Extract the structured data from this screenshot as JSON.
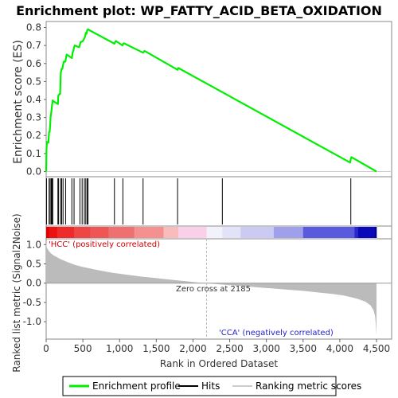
{
  "title": "Enrichment plot: WP_FATTY_ACID_BETA_OXIDATION",
  "colors": {
    "enrichment": "#00ee00",
    "hits": "#000000",
    "metric_fill": "#bbbbbb",
    "pos_label": "#cc0000",
    "neg_label": "#2222cc",
    "zero_cross_line": "#bbbbbb"
  },
  "chart_data": [
    {
      "type": "line",
      "name": "enrichment-profile",
      "ylabel": "Enrichment score (ES)",
      "ylim": [
        -0.02,
        0.82
      ],
      "yticks": [
        0.0,
        0.1,
        0.2,
        0.3,
        0.4,
        0.5,
        0.6,
        0.7,
        0.8
      ],
      "ytick_labels": [
        "0.0",
        "0.1",
        "0.2",
        "0.3",
        "0.4",
        "0.5",
        "0.6",
        "0.7",
        "0.8"
      ],
      "series": [
        {
          "name": "Enrichment profile",
          "x": [
            0,
            4,
            10,
            18,
            20,
            30,
            38,
            40,
            48,
            55,
            60,
            70,
            80,
            90,
            100,
            160,
            165,
            180,
            190,
            200,
            210,
            220,
            240,
            260,
            280,
            350,
            360,
            370,
            380,
            390,
            420,
            450,
            470,
            480,
            500,
            520,
            530,
            540,
            550,
            560,
            570,
            580,
            930,
            940,
            950,
            1040,
            1050,
            1060,
            1320,
            1330,
            1340,
            1790,
            1800,
            4140,
            4150,
            4160,
            4500
          ],
          "y": [
            0.0,
            0.12,
            0.165,
            0.16,
            0.16,
            0.16,
            0.21,
            0.22,
            0.22,
            0.26,
            0.3,
            0.33,
            0.37,
            0.395,
            0.39,
            0.375,
            0.42,
            0.43,
            0.43,
            0.55,
            0.57,
            0.57,
            0.61,
            0.61,
            0.65,
            0.63,
            0.66,
            0.67,
            0.69,
            0.7,
            0.695,
            0.69,
            0.72,
            0.72,
            0.725,
            0.74,
            0.75,
            0.77,
            0.765,
            0.785,
            0.79,
            0.787,
            0.71,
            0.72,
            0.725,
            0.7,
            0.71,
            0.712,
            0.66,
            0.665,
            0.67,
            0.565,
            0.575,
            0.05,
            0.07,
            0.08,
            0.0
          ]
        }
      ]
    },
    {
      "type": "scatter",
      "name": "hits",
      "series": [
        {
          "name": "Hits",
          "x": [
            5,
            40,
            55,
            70,
            80,
            90,
            160,
            170,
            200,
            210,
            230,
            265,
            350,
            380,
            460,
            490,
            520,
            540,
            560,
            570,
            930,
            1045,
            1320,
            1790,
            2400,
            4150
          ]
        }
      ]
    },
    {
      "type": "heatmap",
      "name": "rank-colorbar",
      "segments": [
        {
          "x0": 0,
          "x1": 40,
          "color": "#dd0000"
        },
        {
          "x0": 40,
          "x1": 150,
          "color": "#ee1111"
        },
        {
          "x0": 150,
          "x1": 380,
          "color": "#ee2a2a"
        },
        {
          "x0": 380,
          "x1": 600,
          "color": "#ee4545"
        },
        {
          "x0": 600,
          "x1": 850,
          "color": "#ee5555"
        },
        {
          "x0": 850,
          "x1": 1200,
          "color": "#ee7070"
        },
        {
          "x0": 1200,
          "x1": 1600,
          "color": "#f59090"
        },
        {
          "x0": 1600,
          "x1": 1800,
          "color": "#f8bcbc"
        },
        {
          "x0": 1800,
          "x1": 2185,
          "color": "#f9d0e8"
        },
        {
          "x0": 2185,
          "x1": 2400,
          "color": "#f2f2fb"
        },
        {
          "x0": 2400,
          "x1": 2650,
          "color": "#e2e2f8"
        },
        {
          "x0": 2650,
          "x1": 3100,
          "color": "#cacaf2"
        },
        {
          "x0": 3100,
          "x1": 3500,
          "color": "#a0a0ea"
        },
        {
          "x0": 3500,
          "x1": 4200,
          "color": "#5a5ade"
        },
        {
          "x0": 4200,
          "x1": 4250,
          "color": "#2a2acc"
        },
        {
          "x0": 4250,
          "x1": 4480,
          "color": "#0a0ab8"
        },
        {
          "x0": 4480,
          "x1": 4500,
          "color": "#00008a"
        }
      ]
    },
    {
      "type": "area",
      "name": "ranked-metric",
      "xlabel": "Rank in Ordered Dataset",
      "ylabel": "Ranked list metric (Signal2Noise)",
      "xlim": [
        0,
        4500
      ],
      "ylim": [
        -1.45,
        1.15
      ],
      "xticks": [
        0,
        500,
        1000,
        1500,
        2000,
        2500,
        3000,
        3500,
        4000,
        4500
      ],
      "xtick_labels": [
        "0",
        "500",
        "1,000",
        "1,500",
        "2,000",
        "2,500",
        "3,000",
        "3,500",
        "4,000",
        "4,500"
      ],
      "yticks": [
        1.0,
        0.5,
        0.0,
        -0.5,
        -1.0
      ],
      "ytick_labels": [
        "1.0",
        "0.5",
        "0.0",
        "-0.5",
        "-1.0"
      ],
      "series": [
        {
          "name": "Ranking metric scores",
          "x": [
            0,
            10,
            30,
            60,
            100,
            200,
            300,
            400,
            500,
            700,
            900,
            1100,
            1300,
            1500,
            1700,
            1900,
            2100,
            2185,
            2300,
            2500,
            2700,
            2900,
            3100,
            3300,
            3500,
            3700,
            3900,
            4050,
            4150,
            4250,
            4350,
            4420,
            4460,
            4480,
            4490,
            4500
          ],
          "y": [
            1.05,
            0.92,
            0.85,
            0.78,
            0.72,
            0.62,
            0.54,
            0.47,
            0.42,
            0.34,
            0.27,
            0.22,
            0.17,
            0.13,
            0.09,
            0.05,
            0.01,
            0.0,
            -0.02,
            -0.05,
            -0.08,
            -0.11,
            -0.14,
            -0.17,
            -0.2,
            -0.24,
            -0.28,
            -0.32,
            -0.36,
            -0.41,
            -0.48,
            -0.58,
            -0.7,
            -0.85,
            -1.05,
            -1.35
          ]
        }
      ]
    }
  ],
  "annotations": {
    "pos_label": "'HCC' (positively correlated)",
    "neg_label": "'CCA' (negatively correlated)",
    "zero_cross": "Zero cross at 2185",
    "zero_cross_rank": 2185
  },
  "legend": {
    "items": [
      "Enrichment profile",
      "Hits",
      "Ranking metric scores"
    ]
  }
}
